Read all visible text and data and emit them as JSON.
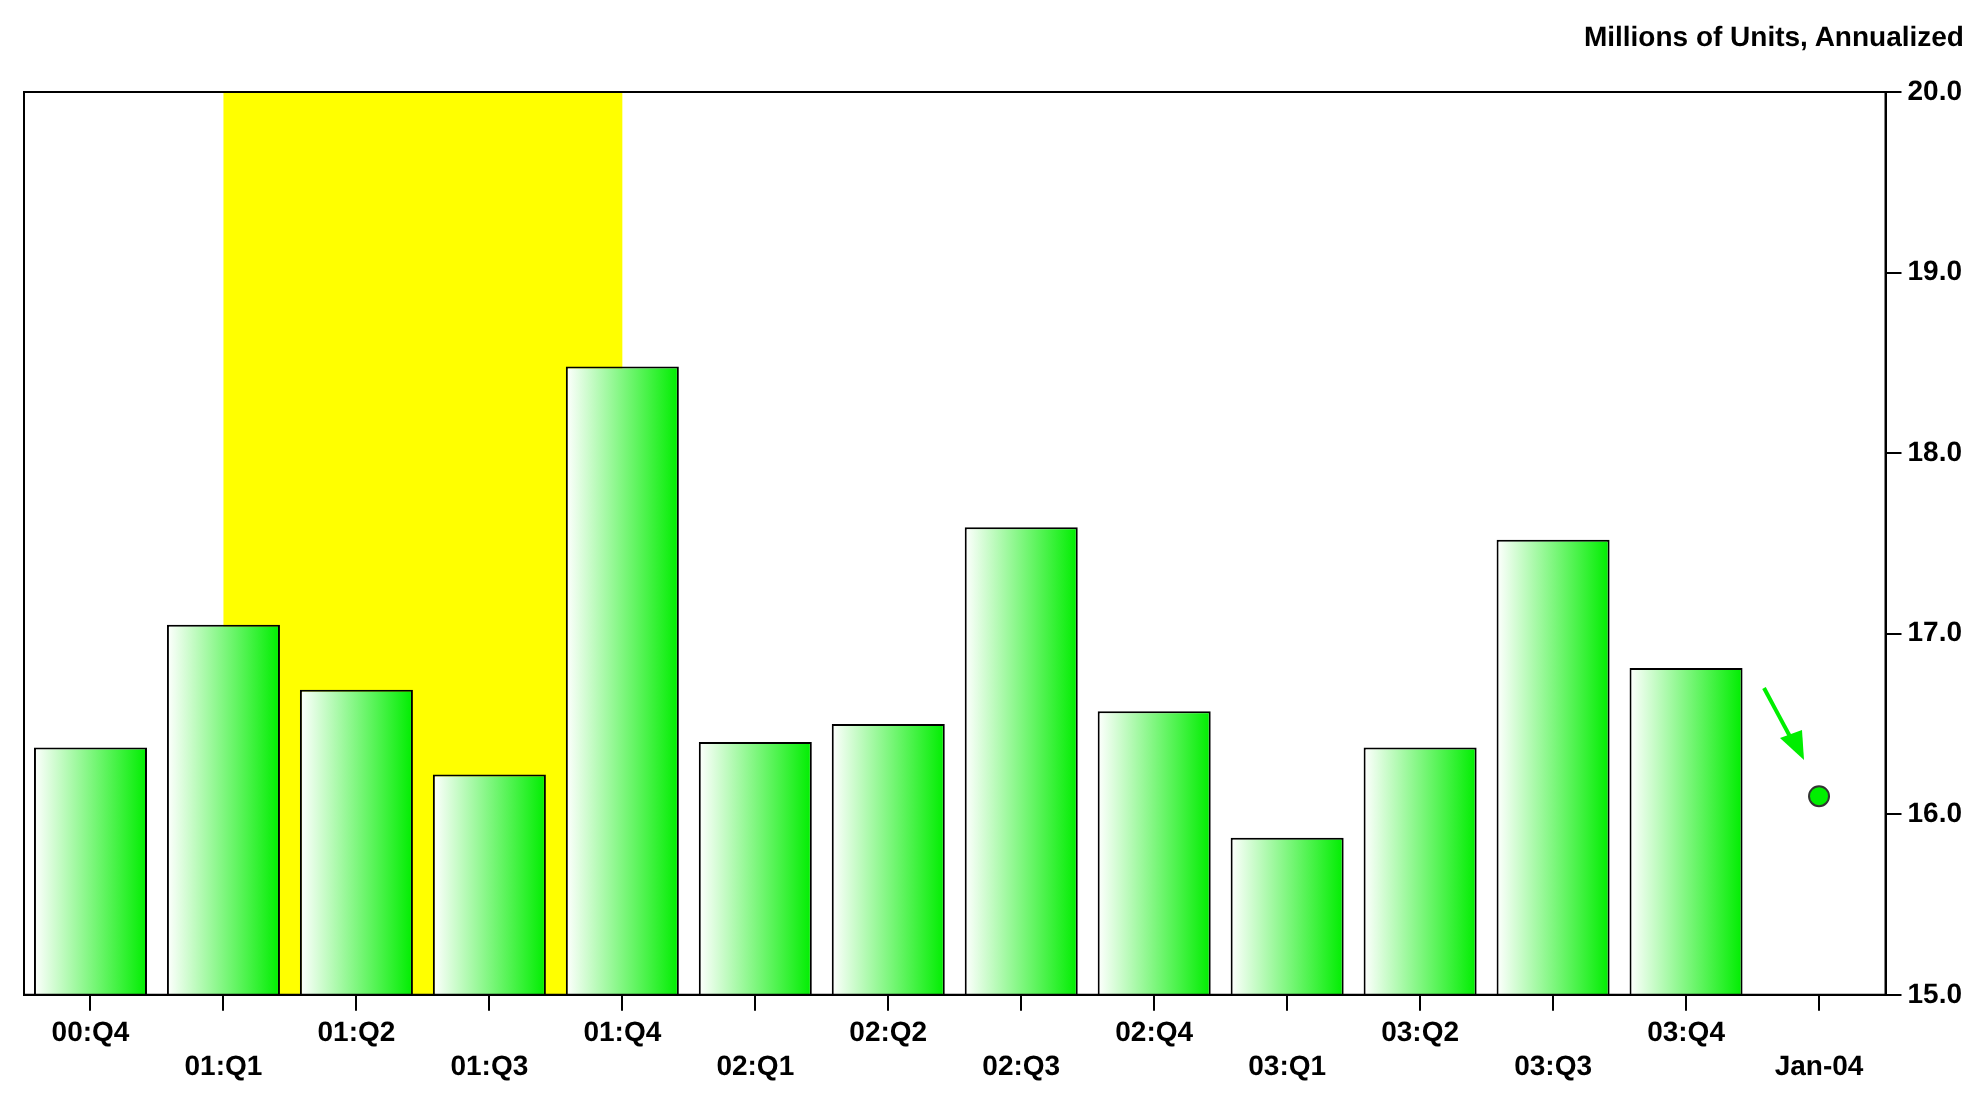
{
  "chart_data": {
    "type": "bar",
    "ylabel": "Millions of Units, Annualized",
    "categories": [
      "00:Q4",
      "01:Q1",
      "01:Q2",
      "01:Q3",
      "01:Q4",
      "02:Q1",
      "02:Q2",
      "02:Q3",
      "02:Q4",
      "03:Q1",
      "03:Q2",
      "03:Q3",
      "03:Q4",
      "Jan-04"
    ],
    "series": [
      {
        "color": "#00ee00",
        "values": [
          16.37,
          17.05,
          16.69,
          16.22,
          18.48,
          16.4,
          16.5,
          17.59,
          16.57,
          15.87,
          16.37,
          17.52,
          16.81,
          null
        ]
      },
      {
        "type": "scatter",
        "color": "#00ee00",
        "x": [
          "Jan-04"
        ],
        "values": [
          16.1
        ]
      }
    ],
    "ylim": [
      15,
      20
    ],
    "yticks": [
      {
        "value": 15,
        "label": "15.0"
      },
      {
        "value": 16,
        "label": "16.0"
      },
      {
        "value": 17,
        "label": "17.0"
      },
      {
        "value": 18,
        "label": "18.0"
      },
      {
        "value": 19,
        "label": "19.0"
      },
      {
        "value": 20,
        "label": "20.0"
      }
    ],
    "bands": [
      {
        "axis": "x",
        "from": "01:Q1",
        "to": "01:Q4",
        "color": "#ffff00"
      }
    ],
    "grid": false,
    "legend": false,
    "marker": "circle"
  }
}
